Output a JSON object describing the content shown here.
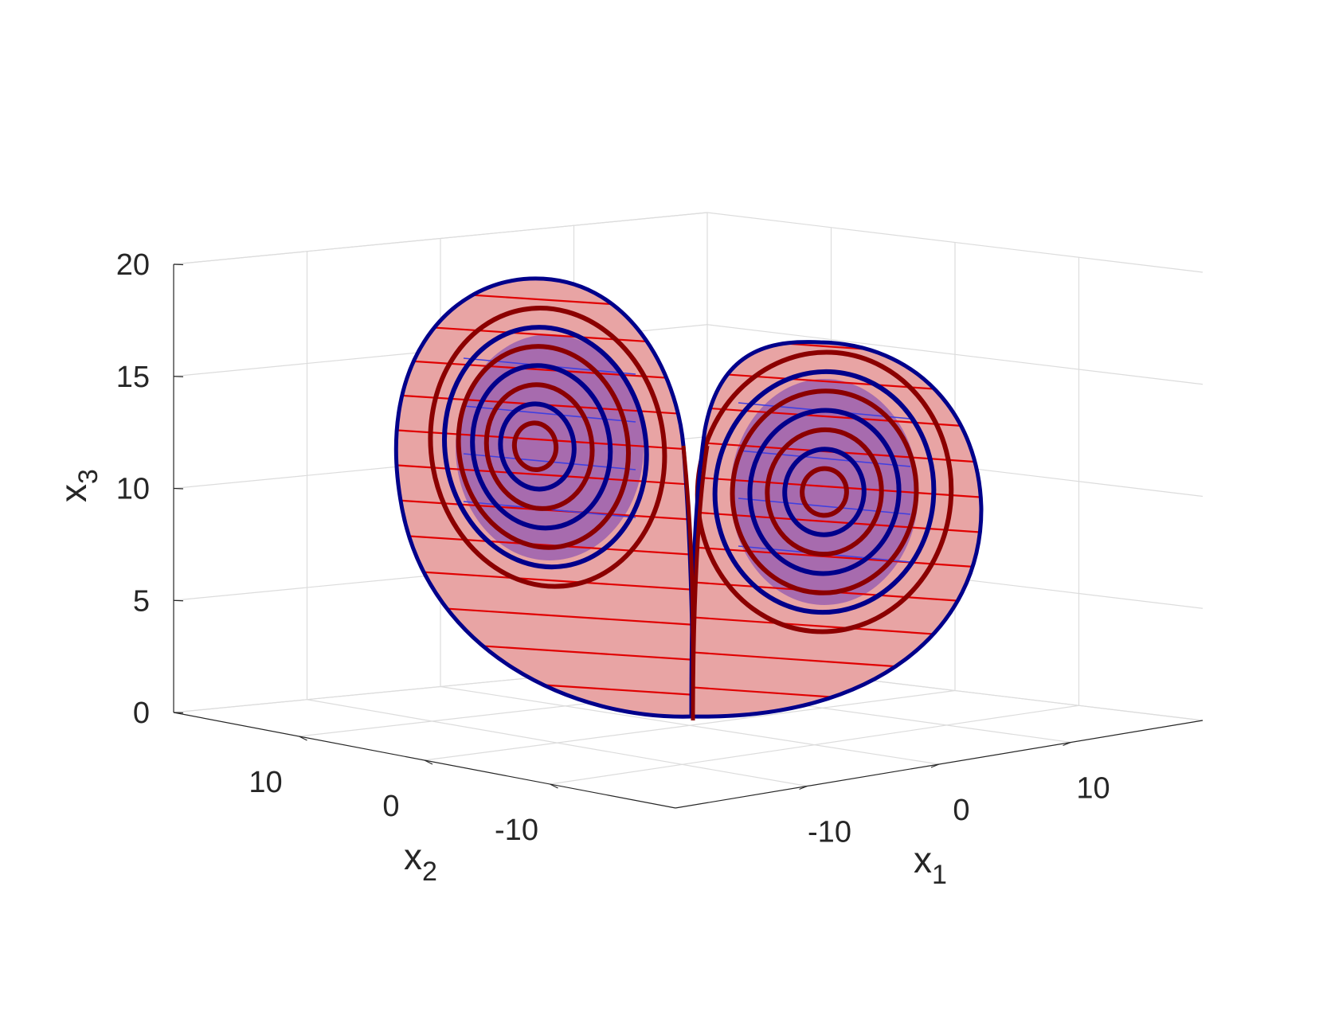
{
  "chart_data": {
    "type": "3d-line-surface",
    "title": "",
    "axes": {
      "x1": {
        "label": "x",
        "subscript": "1",
        "ticks": [
          -10,
          0,
          10
        ],
        "lim": [
          -20,
          20
        ]
      },
      "x2": {
        "label": "x",
        "subscript": "2",
        "ticks": [
          -10,
          0,
          10
        ],
        "lim": [
          -20,
          20
        ]
      },
      "x3": {
        "label": "x",
        "subscript": "3",
        "ticks": [
          0,
          5,
          10,
          15,
          20
        ],
        "lim": [
          0,
          20
        ]
      }
    },
    "grid": true,
    "view": "3d-box-back-planes",
    "lobes": [
      {
        "name": "left",
        "center_x3": 11.8
      },
      {
        "name": "right",
        "center_x3": 10.2
      }
    ],
    "colors": {
      "outer_surface": "#e8a4a4",
      "inner_surface": "#9b62b0",
      "blue_curve": "#00008b",
      "dark_red_curve": "#8b0000",
      "red_lines": "#e00000",
      "grid": "#dcdcdc",
      "axis": "#262626"
    }
  }
}
